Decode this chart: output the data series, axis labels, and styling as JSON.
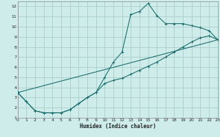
{
  "xlabel": "Humidex (Indice chaleur)",
  "xlim": [
    0,
    23
  ],
  "ylim": [
    1,
    12.5
  ],
  "xticks": [
    0,
    1,
    2,
    3,
    4,
    5,
    6,
    7,
    8,
    9,
    10,
    11,
    12,
    13,
    14,
    15,
    16,
    17,
    18,
    19,
    20,
    21,
    22,
    23
  ],
  "yticks": [
    1,
    2,
    3,
    4,
    5,
    6,
    7,
    8,
    9,
    10,
    11,
    12
  ],
  "background_color": "#ceecea",
  "grid_color": "#aed0cc",
  "line_color": "#1a6b6b",
  "line1_x": [
    0,
    1,
    2,
    3,
    4,
    5,
    6,
    7,
    8,
    9,
    10,
    11,
    12,
    13,
    14,
    15,
    16,
    17,
    18,
    19,
    20,
    21,
    22,
    23
  ],
  "line1_y": [
    3.5,
    2.6,
    1.7,
    1.5,
    1.5,
    1.5,
    1.8,
    2.4,
    3.0,
    3.5,
    5.0,
    6.5,
    7.5,
    11.2,
    11.5,
    12.3,
    11.1,
    10.3,
    10.3,
    10.3,
    10.1,
    9.9,
    9.6,
    8.7
  ],
  "line2_x": [
    0,
    1,
    2,
    3,
    4,
    5,
    6,
    7,
    8,
    9,
    10,
    11,
    12,
    13,
    14,
    15,
    16,
    17,
    18,
    19,
    20,
    21,
    22,
    23
  ],
  "line2_y": [
    3.5,
    2.6,
    1.7,
    1.5,
    1.5,
    1.5,
    1.8,
    2.4,
    3.0,
    3.5,
    4.4,
    4.7,
    4.9,
    5.3,
    5.7,
    6.1,
    6.5,
    7.0,
    7.5,
    8.0,
    8.5,
    8.9,
    9.1,
    8.7
  ],
  "line3_x": [
    0,
    23
  ],
  "line3_y": [
    3.5,
    8.7
  ]
}
